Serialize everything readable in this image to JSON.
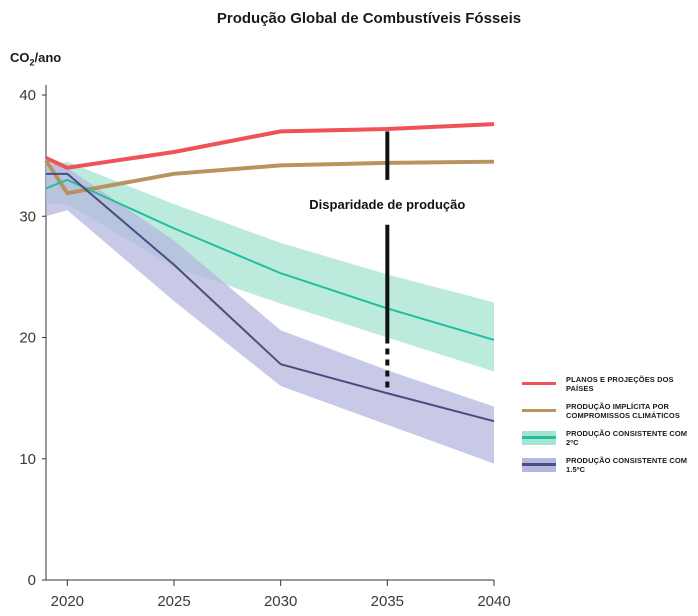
{
  "title": "Produção Global de Combustíveis Fósseis",
  "unit": {
    "prefix": "CO",
    "subscript": "2",
    "suffix": "/ano"
  },
  "chart_data": {
    "type": "line",
    "title": "Produção Global de Combustíveis Fósseis",
    "ylabel": "CO2/ano",
    "xlim": [
      2019,
      2040
    ],
    "ylim": [
      0,
      40
    ],
    "xticks": [
      2020,
      2025,
      2030,
      2035,
      2040
    ],
    "yticks": [
      0,
      10,
      20,
      30,
      40
    ],
    "grid": false,
    "legend_position": "right",
    "annotation": {
      "text": "Disparidade de produção",
      "x": 2035
    },
    "series": [
      {
        "name": "PLANOS E PROJEÇÕES DOS PAÍSES",
        "color": "#f0525a",
        "x": [
          2019,
          2020,
          2025,
          2030,
          2035,
          2040
        ],
        "y": [
          34.8,
          34.0,
          35.3,
          37.0,
          37.2,
          37.6
        ]
      },
      {
        "name": "PRODUÇÃO IMPLÍCITA POR COMPROMISSOS CLIMÁTICOS",
        "color": "#b89360",
        "x": [
          2019,
          2020,
          2025,
          2030,
          2035,
          2040
        ],
        "y": [
          34.6,
          31.9,
          33.5,
          34.2,
          34.4,
          34.5
        ]
      },
      {
        "name": "PRODUÇÃO CONSISTENTE COM 2ºC",
        "color": "#1fbf9f",
        "band_color": "#a6e3d2",
        "x": [
          2019,
          2020,
          2025,
          2030,
          2035,
          2040
        ],
        "y": [
          32.3,
          33.0,
          29.0,
          25.3,
          22.4,
          19.8
        ],
        "band_lower": [
          31.0,
          31.0,
          25.8,
          22.8,
          20.0,
          17.2
        ],
        "band_upper": [
          34.2,
          34.5,
          31.0,
          27.8,
          25.2,
          22.9
        ]
      },
      {
        "name": "PRODUÇÃO CONSISTENTE COM 1.5ºC",
        "color": "#4b4d82",
        "band_color": "#b5b7de",
        "x": [
          2019,
          2020,
          2025,
          2030,
          2035,
          2040
        ],
        "y": [
          33.5,
          33.5,
          26.0,
          17.8,
          15.4,
          13.1
        ],
        "band_lower": [
          30.0,
          30.5,
          23.0,
          16.0,
          12.8,
          9.6
        ],
        "band_upper": [
          34.5,
          34.0,
          28.0,
          20.6,
          17.3,
          14.3
        ]
      }
    ]
  }
}
